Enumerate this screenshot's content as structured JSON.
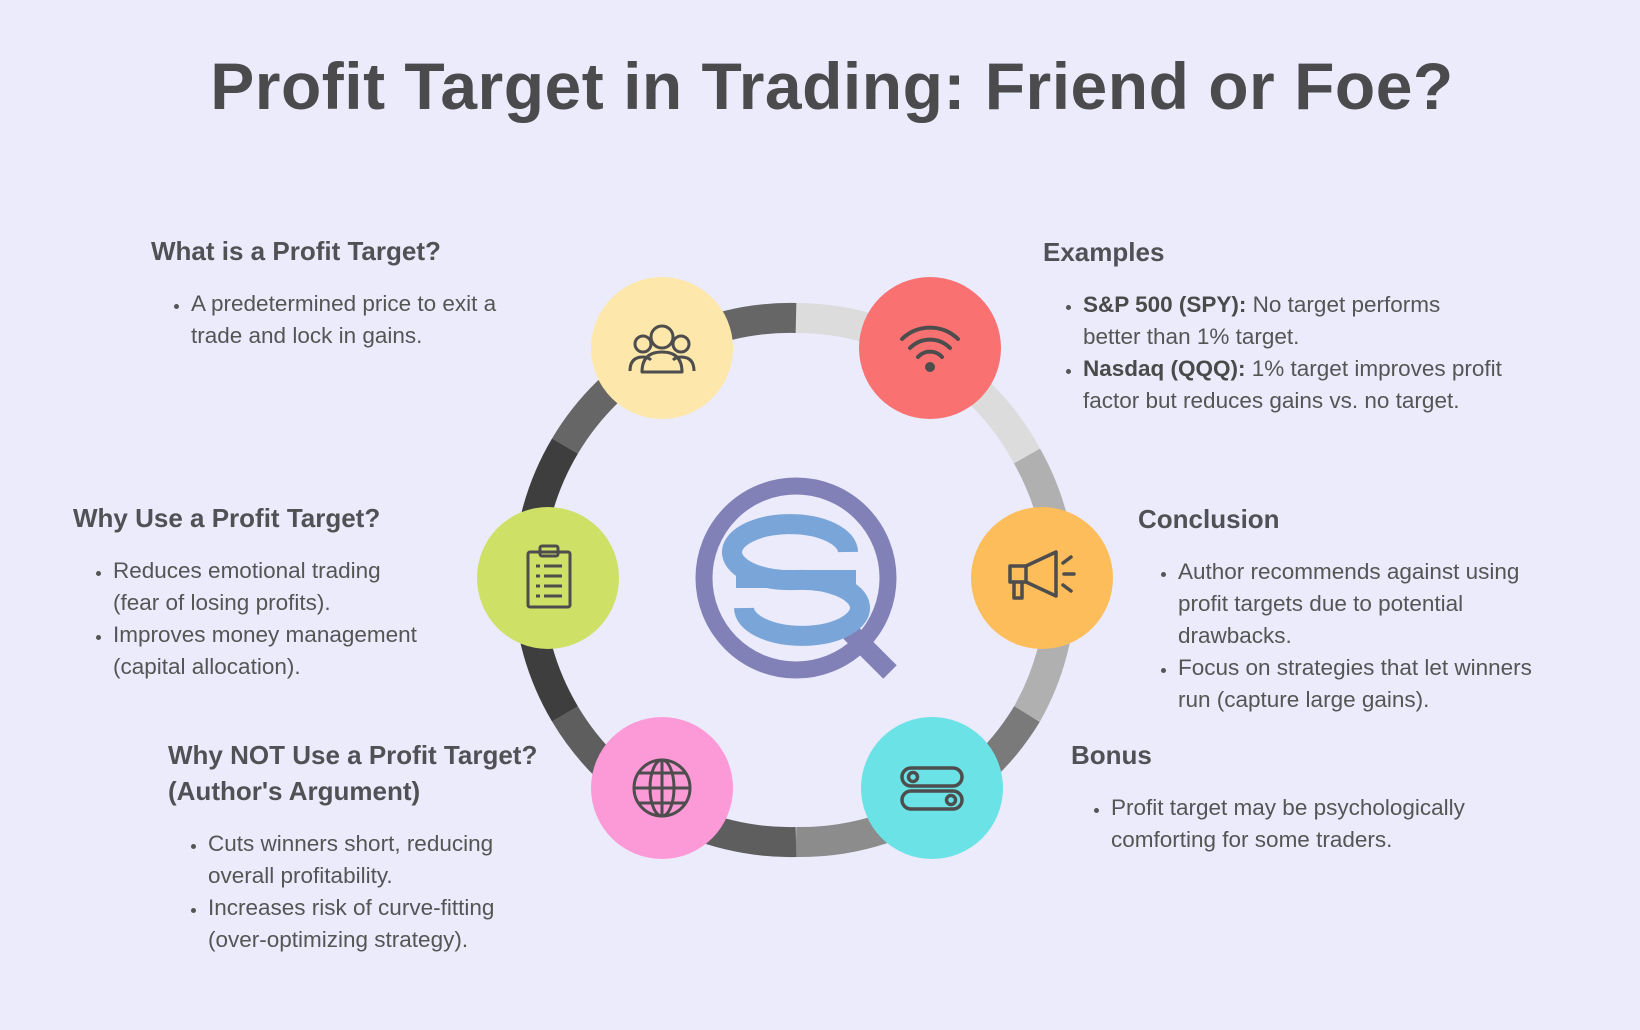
{
  "title": "Profit Target in Trading: Friend or Foe?",
  "colors": {
    "background": "#ebebfc",
    "people_circle": "#fde7aa",
    "wifi_circle": "#f97171",
    "clipboard_circle": "#cfe067",
    "megaphone_circle": "#fdbd5b",
    "globe_circle": "#fc9ad8",
    "toggle_circle": "#6be3e6",
    "logo_ring": "#8181b8",
    "logo_s": "#79a5d9"
  },
  "icons": {
    "top_left": "people-icon",
    "top_right": "wifi-icon",
    "mid_left": "clipboard-icon",
    "mid_right": "megaphone-icon",
    "bottom_left": "globe-icon",
    "bottom_right": "toggle-icon",
    "center": "logo-icon"
  },
  "sections": {
    "what": {
      "heading": "What is a Profit Target?",
      "items": [
        "A predetermined price to exit a trade and lock in gains."
      ]
    },
    "why": {
      "heading": "Why Use a Profit Target?",
      "items": [
        "Reduces emotional trading (fear of losing profits).",
        "Improves money management (capital allocation)."
      ]
    },
    "why_not": {
      "heading_line1": "Why NOT Use a Profit Target?",
      "heading_line2": "(Author's Argument)",
      "items": [
        "Cuts winners short, reducing overall profitability.",
        "Increases risk of curve-fitting (over-optimizing strategy)."
      ]
    },
    "examples": {
      "heading": "Examples",
      "items": [
        {
          "bold": "S&P 500 (SPY):",
          "text": " No target performs better than 1% target."
        },
        {
          "bold": "Nasdaq (QQQ):",
          "text": " 1% target improves profit factor but reduces gains vs. no target."
        }
      ]
    },
    "conclusion": {
      "heading": "Conclusion",
      "items": [
        "Author recommends against using profit targets due to potential drawbacks.",
        "Focus on strategies that let winners run (capture large gains)."
      ]
    },
    "bonus": {
      "heading": "Bonus",
      "items": [
        "Profit target may be psychologically comforting for some traders."
      ]
    }
  }
}
